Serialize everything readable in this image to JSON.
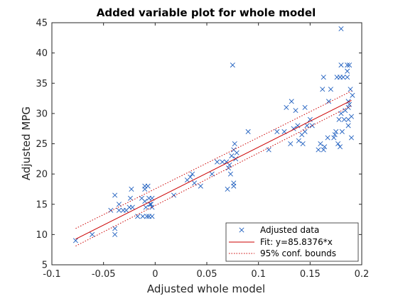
{
  "chart_data": {
    "type": "scatter",
    "title": "Added variable plot for whole model",
    "xlabel": "Adjusted whole model",
    "ylabel": "Adjusted MPG",
    "xlim": [
      -0.1,
      0.2
    ],
    "ylim": [
      5,
      45
    ],
    "xticks": [
      -0.1,
      -0.05,
      0,
      0.05,
      0.1,
      0.15,
      0.2
    ],
    "xtick_labels": [
      "-0.1",
      "-0.05",
      "0",
      "0.05",
      "0.1",
      "0.15",
      "0.2"
    ],
    "yticks": [
      5,
      10,
      15,
      20,
      25,
      30,
      35,
      40,
      45
    ],
    "ytick_labels": [
      "5",
      "10",
      "15",
      "20",
      "25",
      "30",
      "35",
      "40",
      "45"
    ],
    "grid": false,
    "legend_position": "bottom-right",
    "legend": {
      "data": "Adjusted data",
      "fit": "Fit: y=85.8376*x",
      "bounds": "95% conf. bounds"
    },
    "colors": {
      "data": "#1f5fbf",
      "fit": "#cc0000",
      "bounds": "#cc0000",
      "axes": "#262626"
    },
    "fit": {
      "slope": 85.8376,
      "intercept": 15.85,
      "x_range": [
        -0.077,
        0.19
      ]
    },
    "bounds": {
      "lower_endpoints": [
        [
          -0.077,
          8.1
        ],
        [
          0.19,
          31.3
        ]
      ],
      "upper_endpoints": [
        [
          -0.077,
          11.0
        ],
        [
          0.19,
          33.7
        ]
      ]
    },
    "points": [
      [
        -0.077,
        9.0
      ],
      [
        -0.061,
        10.0
      ],
      [
        -0.043,
        14.0
      ],
      [
        -0.039,
        16.5
      ],
      [
        -0.039,
        11.0
      ],
      [
        -0.039,
        10.0
      ],
      [
        -0.035,
        15.0
      ],
      [
        -0.035,
        14.0
      ],
      [
        -0.031,
        14.0
      ],
      [
        -0.028,
        14.0
      ],
      [
        -0.025,
        14.5
      ],
      [
        -0.024,
        16.0
      ],
      [
        -0.023,
        17.5
      ],
      [
        -0.022,
        14.5
      ],
      [
        -0.017,
        13.0
      ],
      [
        -0.013,
        16.0
      ],
      [
        -0.012,
        13.0
      ],
      [
        -0.01,
        18.0
      ],
      [
        -0.01,
        17.5
      ],
      [
        -0.01,
        15.5
      ],
      [
        -0.009,
        14.5
      ],
      [
        -0.008,
        13.0
      ],
      [
        -0.007,
        18.0
      ],
      [
        -0.006,
        16.0
      ],
      [
        -0.006,
        13.0
      ],
      [
        -0.005,
        15.0
      ],
      [
        -0.004,
        15.0
      ],
      [
        -0.003,
        16.0
      ],
      [
        -0.003,
        14.5
      ],
      [
        -0.003,
        13.0
      ],
      [
        0.018,
        16.5
      ],
      [
        0.031,
        19.0
      ],
      [
        0.034,
        19.5
      ],
      [
        0.036,
        20.0
      ],
      [
        0.038,
        18.5
      ],
      [
        0.044,
        18.0
      ],
      [
        0.055,
        20.0
      ],
      [
        0.06,
        22.0
      ],
      [
        0.065,
        22.0
      ],
      [
        0.069,
        22.0
      ],
      [
        0.07,
        17.5
      ],
      [
        0.071,
        21.0
      ],
      [
        0.072,
        21.5
      ],
      [
        0.073,
        20.0
      ],
      [
        0.074,
        23.0
      ],
      [
        0.075,
        38.0
      ],
      [
        0.076,
        18.5
      ],
      [
        0.076,
        18.0
      ],
      [
        0.076,
        24.0
      ],
      [
        0.077,
        25.0
      ],
      [
        0.078,
        22.5
      ],
      [
        0.079,
        23.5
      ],
      [
        0.09,
        27.0
      ],
      [
        0.11,
        24.0
      ],
      [
        0.118,
        27.0
      ],
      [
        0.125,
        27.0
      ],
      [
        0.127,
        31.0
      ],
      [
        0.131,
        25.0
      ],
      [
        0.132,
        32.0
      ],
      [
        0.134,
        27.5
      ],
      [
        0.136,
        30.5
      ],
      [
        0.138,
        28.0
      ],
      [
        0.139,
        25.5
      ],
      [
        0.142,
        26.5
      ],
      [
        0.143,
        25.0
      ],
      [
        0.145,
        27.0
      ],
      [
        0.145,
        31.0
      ],
      [
        0.147,
        28.0
      ],
      [
        0.15,
        29.0
      ],
      [
        0.152,
        28.0
      ],
      [
        0.158,
        24.0
      ],
      [
        0.16,
        25.0
      ],
      [
        0.162,
        34.0
      ],
      [
        0.163,
        36.0
      ],
      [
        0.163,
        24.0
      ],
      [
        0.164,
        24.5
      ],
      [
        0.167,
        26.0
      ],
      [
        0.168,
        32.0
      ],
      [
        0.17,
        34.0
      ],
      [
        0.173,
        26.0
      ],
      [
        0.174,
        26.5
      ],
      [
        0.175,
        27.0
      ],
      [
        0.176,
        36.0
      ],
      [
        0.177,
        25.0
      ],
      [
        0.178,
        29.0
      ],
      [
        0.179,
        24.5
      ],
      [
        0.179,
        36.0
      ],
      [
        0.18,
        44.0
      ],
      [
        0.18,
        30.0
      ],
      [
        0.18,
        38.0
      ],
      [
        0.181,
        27.0
      ],
      [
        0.182,
        36.0
      ],
      [
        0.183,
        29.0
      ],
      [
        0.184,
        30.5
      ],
      [
        0.186,
        38.0
      ],
      [
        0.186,
        37.0
      ],
      [
        0.186,
        36.0
      ],
      [
        0.187,
        29.0
      ],
      [
        0.187,
        28.0
      ],
      [
        0.187,
        31.0
      ],
      [
        0.187,
        32.0
      ],
      [
        0.188,
        31.5
      ],
      [
        0.188,
        38.0
      ],
      [
        0.189,
        34.0
      ],
      [
        0.19,
        29.5
      ],
      [
        0.19,
        26.0
      ],
      [
        0.191,
        33.0
      ]
    ]
  }
}
